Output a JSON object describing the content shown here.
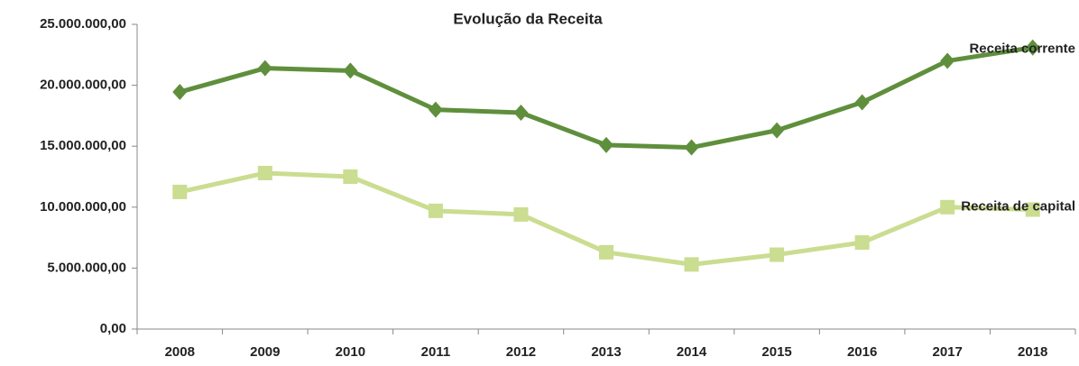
{
  "chart_data": {
    "type": "line",
    "title": "Evolução da Receita",
    "categories": [
      "2008",
      "2009",
      "2010",
      "2011",
      "2012",
      "2013",
      "2014",
      "2015",
      "2016",
      "2017",
      "2018"
    ],
    "series": [
      {
        "name": "Receita corrente",
        "color": "#5f8f3c",
        "marker": "diamond",
        "values": [
          19450000,
          21400000,
          21200000,
          18000000,
          17750000,
          15100000,
          14900000,
          16300000,
          18600000,
          22000000,
          23100000
        ]
      },
      {
        "name": "Receita de capital",
        "color": "#cadd90",
        "marker": "square",
        "values": [
          11250000,
          12800000,
          12500000,
          9700000,
          9400000,
          6300000,
          5300000,
          6100000,
          7100000,
          10000000,
          9800000
        ]
      }
    ],
    "ylim": [
      0,
      25000000
    ],
    "yticks": [
      {
        "value": 0,
        "label": "0,00"
      },
      {
        "value": 5000000,
        "label": "5.000.000,00"
      },
      {
        "value": 10000000,
        "label": "10.000.000,00"
      },
      {
        "value": 15000000,
        "label": "15.000.000,00"
      },
      {
        "value": 20000000,
        "label": "20.000.000,00"
      },
      {
        "value": 25000000,
        "label": "25.000.000,00"
      }
    ],
    "grid": false
  }
}
